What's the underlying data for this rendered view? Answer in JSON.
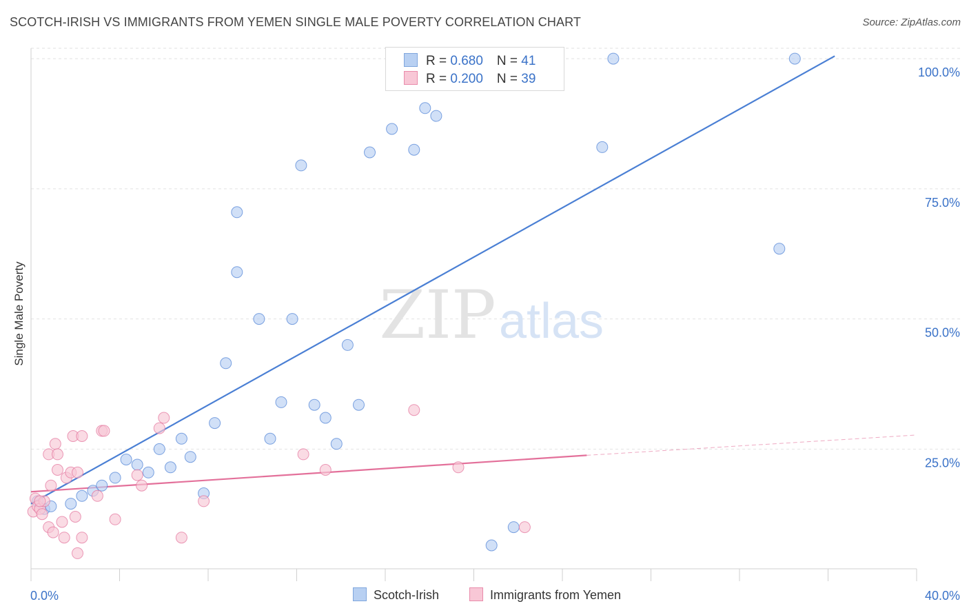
{
  "title": "SCOTCH-IRISH VS IMMIGRANTS FROM YEMEN SINGLE MALE POVERTY CORRELATION CHART",
  "source": "Source: ZipAtlas.com",
  "watermark": {
    "zip": "ZIP",
    "atlas": "atlas"
  },
  "legend": {
    "rows": [
      {
        "r_label": "R = ",
        "r_value": "0.680",
        "n_label": "N = ",
        "n_value": "41",
        "color": "#b8d0f2",
        "border": "#7fa6dd"
      },
      {
        "r_label": "R = ",
        "r_value": "0.200",
        "n_label": "N = ",
        "n_value": "39",
        "color": "#f8c7d6",
        "border": "#e98aaa"
      }
    ]
  },
  "bottom_legend": [
    {
      "label": "Scotch-Irish",
      "color": "#b8d0f2",
      "border": "#7fa6dd"
    },
    {
      "label": "Immigrants from Yemen",
      "color": "#f8c7d6",
      "border": "#e98aaa"
    }
  ],
  "chart_data": {
    "type": "scatter",
    "title": "SCOTCH-IRISH VS IMMIGRANTS FROM YEMEN SINGLE MALE POVERTY CORRELATION CHART",
    "xlabel": "",
    "ylabel": "Single Male Poverty",
    "xlim": [
      0,
      40
    ],
    "ylim": [
      2,
      102
    ],
    "x_tick_labels": [
      "0.0%",
      "40.0%"
    ],
    "y_ticks": [
      25,
      50,
      75,
      100
    ],
    "y_tick_labels": [
      "25.0%",
      "50.0%",
      "75.0%",
      "100.0%"
    ],
    "grid": true,
    "legend_position": "top-center",
    "series": [
      {
        "name": "Scotch-Irish",
        "color": "#4a7fd4",
        "fill": "#b8d0f2",
        "r": 0.68,
        "n": 41,
        "trend": {
          "x": [
            0,
            36.3
          ],
          "y": [
            14.5,
            100.5
          ]
        },
        "points": [
          [
            0.3,
            15.0
          ],
          [
            0.6,
            13.5
          ],
          [
            0.9,
            14.0
          ],
          [
            1.8,
            14.5
          ],
          [
            2.3,
            16.0
          ],
          [
            2.8,
            17.0
          ],
          [
            3.2,
            18.0
          ],
          [
            3.8,
            19.5
          ],
          [
            4.3,
            23.0
          ],
          [
            4.8,
            22.0
          ],
          [
            5.3,
            20.5
          ],
          [
            5.8,
            25.0
          ],
          [
            6.3,
            21.5
          ],
          [
            6.8,
            27.0
          ],
          [
            7.2,
            23.5
          ],
          [
            7.8,
            16.5
          ],
          [
            8.3,
            30.0
          ],
          [
            8.8,
            41.5
          ],
          [
            9.3,
            70.5
          ],
          [
            9.3,
            59.0
          ],
          [
            10.3,
            50.0
          ],
          [
            10.8,
            27.0
          ],
          [
            11.3,
            34.0
          ],
          [
            11.8,
            50.0
          ],
          [
            12.2,
            79.5
          ],
          [
            12.8,
            33.5
          ],
          [
            13.3,
            31.0
          ],
          [
            13.8,
            26.0
          ],
          [
            14.3,
            45.0
          ],
          [
            14.8,
            33.5
          ],
          [
            15.3,
            82.0
          ],
          [
            16.3,
            86.5
          ],
          [
            17.3,
            82.5
          ],
          [
            17.8,
            90.5
          ],
          [
            18.3,
            89.0
          ],
          [
            20.8,
            6.5
          ],
          [
            21.8,
            10.0
          ],
          [
            25.8,
            83.0
          ],
          [
            26.3,
            100.0
          ],
          [
            33.8,
            63.5
          ],
          [
            34.5,
            100.0
          ]
        ]
      },
      {
        "name": "Immigrants from Yemen",
        "color": "#e3709a",
        "fill": "#f8c7d6",
        "r": 0.2,
        "n": 39,
        "trend": {
          "x": [
            0,
            25.1
          ],
          "y": [
            16.8,
            23.8
          ]
        },
        "trend_dashed": {
          "x": [
            25.1,
            40
          ],
          "y": [
            23.8,
            27.7
          ]
        },
        "points": [
          [
            0.1,
            13.0
          ],
          [
            0.2,
            15.5
          ],
          [
            0.3,
            14.0
          ],
          [
            0.4,
            13.5
          ],
          [
            0.5,
            12.5
          ],
          [
            0.6,
            15.0
          ],
          [
            0.8,
            10.0
          ],
          [
            0.8,
            24.0
          ],
          [
            0.9,
            18.0
          ],
          [
            1.0,
            9.0
          ],
          [
            1.1,
            26.0
          ],
          [
            1.2,
            21.0
          ],
          [
            1.2,
            24.0
          ],
          [
            1.4,
            11.0
          ],
          [
            1.5,
            8.0
          ],
          [
            1.6,
            19.5
          ],
          [
            1.8,
            20.5
          ],
          [
            1.9,
            27.5
          ],
          [
            2.0,
            12.0
          ],
          [
            2.1,
            20.5
          ],
          [
            2.1,
            5.0
          ],
          [
            2.3,
            8.0
          ],
          [
            2.3,
            27.5
          ],
          [
            3.0,
            16.0
          ],
          [
            3.2,
            28.5
          ],
          [
            3.3,
            28.5
          ],
          [
            3.8,
            11.5
          ],
          [
            4.8,
            20.0
          ],
          [
            5.0,
            18.0
          ],
          [
            5.8,
            29.0
          ],
          [
            6.0,
            31.0
          ],
          [
            6.8,
            8.0
          ],
          [
            7.8,
            15.0
          ],
          [
            12.3,
            24.0
          ],
          [
            13.3,
            21.0
          ],
          [
            17.3,
            32.5
          ],
          [
            19.3,
            21.5
          ],
          [
            22.3,
            10.0
          ],
          [
            0.4,
            15.0
          ]
        ]
      }
    ]
  }
}
